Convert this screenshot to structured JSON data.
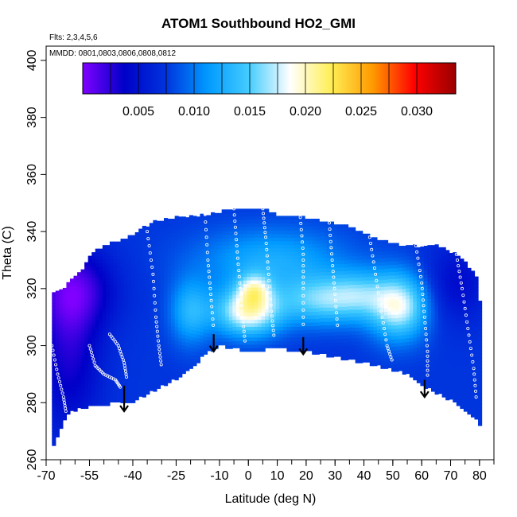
{
  "figure": {
    "title": "ATOM1 Southbound HO2_GMI",
    "notes": {
      "flights": "Flts: 2,3,4,5,6",
      "dates": "MMDD: 0801,0803,0806,0808,0812"
    }
  },
  "chart_data": {
    "type": "heatmap",
    "title": "ATOM1 Southbound HO2_GMI",
    "xlabel": "Latitude (deg N)",
    "ylabel": "Theta (C)",
    "xlim": [
      -70,
      85
    ],
    "ylim": [
      260,
      405
    ],
    "x_ticks_major": [
      -70,
      -55,
      -40,
      -25,
      -10,
      0,
      10,
      20,
      30,
      40,
      50,
      60,
      70,
      80
    ],
    "x_tick_labels": [
      "-70",
      "-55",
      "-40",
      "-25",
      "-10",
      "0",
      "10",
      "20",
      "30",
      "40",
      "50",
      "60",
      "70",
      "80"
    ],
    "y_ticks": [
      260,
      280,
      300,
      320,
      340,
      360,
      380,
      400
    ],
    "y_tick_labels": [
      "260",
      "280",
      "300",
      "320",
      "340",
      "360",
      "380",
      "400"
    ],
    "grid": false,
    "colorbar": {
      "position": "top",
      "ticks": [
        0.005,
        0.01,
        0.015,
        0.02,
        0.025,
        0.03
      ],
      "tick_labels": [
        "0.005",
        "0.010",
        "0.015",
        "0.020",
        "0.025",
        "0.030"
      ],
      "range": [
        0.0,
        0.0335
      ],
      "colors": [
        "#8000ff",
        "#0000c8",
        "#0033dd",
        "#0099ff",
        "#44ccff",
        "#ffffff",
        "#ffee55",
        "#ff9900",
        "#ff0000",
        "#990000"
      ]
    },
    "boundary": {
      "bottom": [
        [
          -68,
          264
        ],
        [
          -63,
          276
        ],
        [
          -55,
          279
        ],
        [
          -44,
          280
        ],
        [
          -41,
          280
        ],
        [
          -33,
          284
        ],
        [
          -22,
          290
        ],
        [
          -15,
          297
        ],
        [
          -10,
          300
        ],
        [
          0,
          298
        ],
        [
          10,
          299
        ],
        [
          20,
          298
        ],
        [
          30,
          296
        ],
        [
          45,
          293
        ],
        [
          55,
          290
        ],
        [
          62,
          285
        ],
        [
          70,
          281
        ],
        [
          78,
          275
        ],
        [
          80,
          272
        ]
      ],
      "top": [
        [
          -68,
          319
        ],
        [
          -63,
          321
        ],
        [
          -58,
          326
        ],
        [
          -54,
          333
        ],
        [
          -48,
          336
        ],
        [
          -42,
          338
        ],
        [
          -37,
          341
        ],
        [
          -32,
          344
        ],
        [
          -25,
          345
        ],
        [
          -15,
          346
        ],
        [
          -5,
          348
        ],
        [
          5,
          348
        ],
        [
          10,
          346
        ],
        [
          20,
          345
        ],
        [
          30,
          343
        ],
        [
          35,
          342
        ],
        [
          45,
          337
        ],
        [
          55,
          335
        ],
        [
          65,
          335
        ],
        [
          72,
          332
        ],
        [
          76,
          328
        ],
        [
          79,
          324
        ],
        [
          80,
          316
        ]
      ]
    },
    "field_base": 0.0075,
    "field_features": [
      {
        "lat": 0,
        "theta": 312,
        "amp": 0.0118,
        "sx": 8,
        "sy": 6
      },
      {
        "lat": 2,
        "theta": 320,
        "amp": 0.0065,
        "sx": 4,
        "sy": 4
      },
      {
        "lat": 25,
        "theta": 316,
        "amp": 0.0075,
        "sx": 10,
        "sy": 6
      },
      {
        "lat": 52,
        "theta": 314,
        "amp": 0.011,
        "sx": 7,
        "sy": 8
      },
      {
        "lat": 38,
        "theta": 318,
        "amp": 0.005,
        "sx": 7,
        "sy": 6
      },
      {
        "lat": -20,
        "theta": 312,
        "amp": 0.0055,
        "sx": 5,
        "sy": 8
      },
      {
        "lat": 8,
        "theta": 330,
        "amp": 0.005,
        "sx": 18,
        "sy": 8
      },
      {
        "lat": -62,
        "theta": 298,
        "amp": -0.0045,
        "sx": 8,
        "sy": 20
      },
      {
        "lat": -60,
        "theta": 320,
        "amp": -0.005,
        "sx": 10,
        "sy": 10
      },
      {
        "lat": 72,
        "theta": 322,
        "amp": -0.003,
        "sx": 8,
        "sy": 10
      }
    ],
    "arrows": [
      {
        "lat": -43,
        "theta_top": 286,
        "theta_bottom": 277
      },
      {
        "lat": -12,
        "theta_top": 304,
        "theta_bottom": 298
      },
      {
        "lat": 19,
        "theta_top": 303,
        "theta_bottom": 297
      },
      {
        "lat": 61,
        "theta_top": 288,
        "theta_bottom": 282
      }
    ],
    "flight_tracks": [
      {
        "points": [
          [
            -68,
            300
          ],
          [
            -66,
            290
          ],
          [
            -64,
            282
          ],
          [
            -63,
            276
          ]
        ]
      },
      {
        "points": [
          [
            -55,
            300
          ],
          [
            -53,
            293
          ],
          [
            -50,
            290
          ],
          [
            -46,
            288
          ],
          [
            -44,
            285
          ]
        ]
      },
      {
        "points": [
          [
            -48,
            304
          ],
          [
            -45,
            300
          ],
          [
            -43,
            294
          ],
          [
            -42,
            288
          ]
        ]
      },
      {
        "points": [
          [
            -35,
            340
          ],
          [
            -33,
            325
          ],
          [
            -32,
            310
          ],
          [
            -31,
            300
          ],
          [
            -30,
            292
          ]
        ]
      },
      {
        "points": [
          [
            -15,
            346
          ],
          [
            -14,
            330
          ],
          [
            -13,
            318
          ],
          [
            -12,
            305
          ]
        ]
      },
      {
        "points": [
          [
            -5,
            348
          ],
          [
            -4,
            335
          ],
          [
            -3,
            322
          ],
          [
            -2,
            310
          ],
          [
            -1,
            300
          ]
        ]
      },
      {
        "points": [
          [
            5,
            348
          ],
          [
            6,
            338
          ],
          [
            7,
            325
          ],
          [
            8,
            312
          ],
          [
            9,
            302
          ]
        ]
      },
      {
        "points": [
          [
            18,
            345
          ],
          [
            19,
            332
          ],
          [
            19,
            320
          ],
          [
            19,
            305
          ]
        ]
      },
      {
        "points": [
          [
            28,
            343
          ],
          [
            29,
            330
          ],
          [
            30,
            318
          ],
          [
            31,
            305
          ]
        ]
      },
      {
        "points": [
          [
            42,
            338
          ],
          [
            44,
            325
          ],
          [
            46,
            312
          ],
          [
            48,
            300
          ],
          [
            50,
            294
          ]
        ]
      },
      {
        "points": [
          [
            58,
            335
          ],
          [
            60,
            322
          ],
          [
            61,
            310
          ],
          [
            62,
            298
          ],
          [
            62,
            288
          ]
        ]
      },
      {
        "points": [
          [
            72,
            332
          ],
          [
            74,
            320
          ],
          [
            76,
            306
          ],
          [
            78,
            292
          ],
          [
            79,
            280
          ]
        ]
      }
    ]
  }
}
